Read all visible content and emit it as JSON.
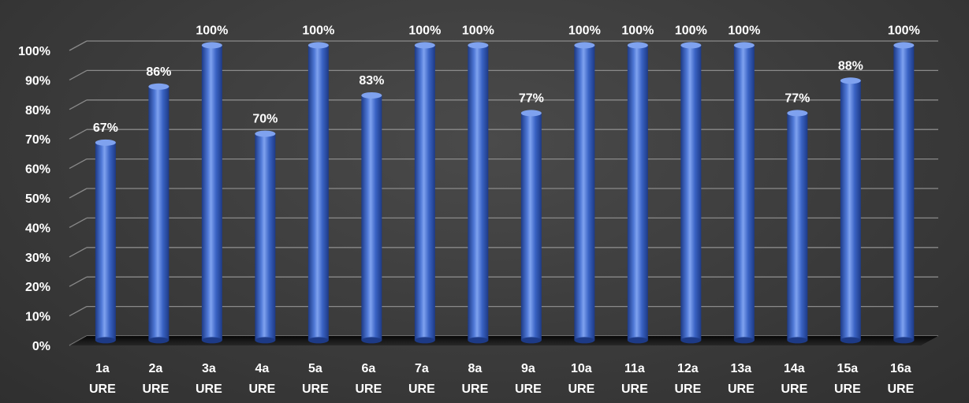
{
  "chart_data": {
    "type": "bar",
    "title": "",
    "xlabel": "",
    "ylabel": "",
    "categories": [
      [
        "1a",
        "URE"
      ],
      [
        "2a",
        "URE"
      ],
      [
        "3a",
        "URE"
      ],
      [
        "4a",
        "URE"
      ],
      [
        "5a",
        "URE"
      ],
      [
        "6a",
        "URE"
      ],
      [
        "7a",
        "URE"
      ],
      [
        "8a",
        "URE"
      ],
      [
        "9a",
        "URE"
      ],
      [
        "10a",
        "URE"
      ],
      [
        "11a",
        "URE"
      ],
      [
        "12a",
        "URE"
      ],
      [
        "13a",
        "URE"
      ],
      [
        "14a",
        "URE"
      ],
      [
        "15a",
        "URE"
      ],
      [
        "16a",
        "URE"
      ]
    ],
    "values": [
      67,
      86,
      100,
      70,
      100,
      83,
      100,
      100,
      77,
      100,
      100,
      100,
      100,
      77,
      88,
      100
    ],
    "data_labels": [
      "67%",
      "86%",
      "100%",
      "70%",
      "100%",
      "83%",
      "100%",
      "100%",
      "77%",
      "100%",
      "100%",
      "100%",
      "100%",
      "77%",
      "88%",
      "100%"
    ],
    "yticks": [
      0,
      10,
      20,
      30,
      40,
      50,
      60,
      70,
      80,
      90,
      100
    ],
    "ytick_labels": [
      "0%",
      "10%",
      "20%",
      "30%",
      "40%",
      "50%",
      "60%",
      "70%",
      "80%",
      "90%",
      "100%"
    ],
    "ylim": [
      0,
      100
    ],
    "grid": true,
    "legend": "none",
    "style": "3d-cylinder",
    "colors": {
      "bar": "#3a63c4",
      "bar_highlight": "#7fa2ef",
      "bar_shadow": "#1d3a86",
      "grid": "#8a8a8a",
      "floor": "#1a1a1a",
      "text": "#ffffff"
    }
  }
}
